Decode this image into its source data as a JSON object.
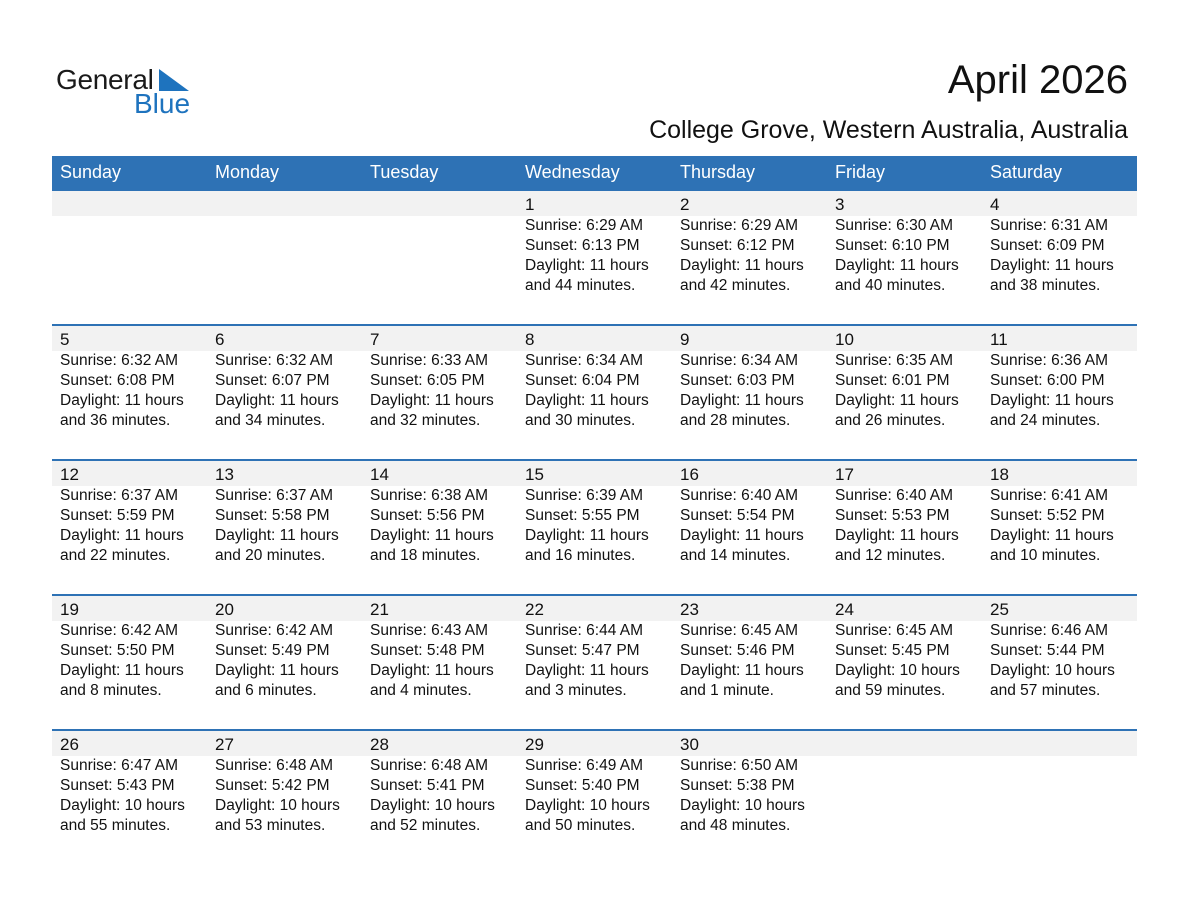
{
  "logo": {
    "text_general": "General",
    "text_blue": "Blue",
    "color": "#1e73be"
  },
  "title": "April 2026",
  "subtitle": "College Grove, Western Australia, Australia",
  "colors": {
    "header": "#2e72b5",
    "strip": "#f2f2f2"
  },
  "weekdays": [
    "Sunday",
    "Monday",
    "Tuesday",
    "Wednesday",
    "Thursday",
    "Friday",
    "Saturday"
  ],
  "weeks": [
    [
      null,
      null,
      null,
      {
        "day": "1",
        "sunrise": "Sunrise: 6:29 AM",
        "sunset": "Sunset: 6:13 PM",
        "daylight": "Daylight: 11 hours",
        "daylight2": "and 44 minutes."
      },
      {
        "day": "2",
        "sunrise": "Sunrise: 6:29 AM",
        "sunset": "Sunset: 6:12 PM",
        "daylight": "Daylight: 11 hours",
        "daylight2": "and 42 minutes."
      },
      {
        "day": "3",
        "sunrise": "Sunrise: 6:30 AM",
        "sunset": "Sunset: 6:10 PM",
        "daylight": "Daylight: 11 hours",
        "daylight2": "and 40 minutes."
      },
      {
        "day": "4",
        "sunrise": "Sunrise: 6:31 AM",
        "sunset": "Sunset: 6:09 PM",
        "daylight": "Daylight: 11 hours",
        "daylight2": "and 38 minutes."
      }
    ],
    [
      {
        "day": "5",
        "sunrise": "Sunrise: 6:32 AM",
        "sunset": "Sunset: 6:08 PM",
        "daylight": "Daylight: 11 hours",
        "daylight2": "and 36 minutes."
      },
      {
        "day": "6",
        "sunrise": "Sunrise: 6:32 AM",
        "sunset": "Sunset: 6:07 PM",
        "daylight": "Daylight: 11 hours",
        "daylight2": "and 34 minutes."
      },
      {
        "day": "7",
        "sunrise": "Sunrise: 6:33 AM",
        "sunset": "Sunset: 6:05 PM",
        "daylight": "Daylight: 11 hours",
        "daylight2": "and 32 minutes."
      },
      {
        "day": "8",
        "sunrise": "Sunrise: 6:34 AM",
        "sunset": "Sunset: 6:04 PM",
        "daylight": "Daylight: 11 hours",
        "daylight2": "and 30 minutes."
      },
      {
        "day": "9",
        "sunrise": "Sunrise: 6:34 AM",
        "sunset": "Sunset: 6:03 PM",
        "daylight": "Daylight: 11 hours",
        "daylight2": "and 28 minutes."
      },
      {
        "day": "10",
        "sunrise": "Sunrise: 6:35 AM",
        "sunset": "Sunset: 6:01 PM",
        "daylight": "Daylight: 11 hours",
        "daylight2": "and 26 minutes."
      },
      {
        "day": "11",
        "sunrise": "Sunrise: 6:36 AM",
        "sunset": "Sunset: 6:00 PM",
        "daylight": "Daylight: 11 hours",
        "daylight2": "and 24 minutes."
      }
    ],
    [
      {
        "day": "12",
        "sunrise": "Sunrise: 6:37 AM",
        "sunset": "Sunset: 5:59 PM",
        "daylight": "Daylight: 11 hours",
        "daylight2": "and 22 minutes."
      },
      {
        "day": "13",
        "sunrise": "Sunrise: 6:37 AM",
        "sunset": "Sunset: 5:58 PM",
        "daylight": "Daylight: 11 hours",
        "daylight2": "and 20 minutes."
      },
      {
        "day": "14",
        "sunrise": "Sunrise: 6:38 AM",
        "sunset": "Sunset: 5:56 PM",
        "daylight": "Daylight: 11 hours",
        "daylight2": "and 18 minutes."
      },
      {
        "day": "15",
        "sunrise": "Sunrise: 6:39 AM",
        "sunset": "Sunset: 5:55 PM",
        "daylight": "Daylight: 11 hours",
        "daylight2": "and 16 minutes."
      },
      {
        "day": "16",
        "sunrise": "Sunrise: 6:40 AM",
        "sunset": "Sunset: 5:54 PM",
        "daylight": "Daylight: 11 hours",
        "daylight2": "and 14 minutes."
      },
      {
        "day": "17",
        "sunrise": "Sunrise: 6:40 AM",
        "sunset": "Sunset: 5:53 PM",
        "daylight": "Daylight: 11 hours",
        "daylight2": "and 12 minutes."
      },
      {
        "day": "18",
        "sunrise": "Sunrise: 6:41 AM",
        "sunset": "Sunset: 5:52 PM",
        "daylight": "Daylight: 11 hours",
        "daylight2": "and 10 minutes."
      }
    ],
    [
      {
        "day": "19",
        "sunrise": "Sunrise: 6:42 AM",
        "sunset": "Sunset: 5:50 PM",
        "daylight": "Daylight: 11 hours",
        "daylight2": "and 8 minutes."
      },
      {
        "day": "20",
        "sunrise": "Sunrise: 6:42 AM",
        "sunset": "Sunset: 5:49 PM",
        "daylight": "Daylight: 11 hours",
        "daylight2": "and 6 minutes."
      },
      {
        "day": "21",
        "sunrise": "Sunrise: 6:43 AM",
        "sunset": "Sunset: 5:48 PM",
        "daylight": "Daylight: 11 hours",
        "daylight2": "and 4 minutes."
      },
      {
        "day": "22",
        "sunrise": "Sunrise: 6:44 AM",
        "sunset": "Sunset: 5:47 PM",
        "daylight": "Daylight: 11 hours",
        "daylight2": "and 3 minutes."
      },
      {
        "day": "23",
        "sunrise": "Sunrise: 6:45 AM",
        "sunset": "Sunset: 5:46 PM",
        "daylight": "Daylight: 11 hours",
        "daylight2": "and 1 minute."
      },
      {
        "day": "24",
        "sunrise": "Sunrise: 6:45 AM",
        "sunset": "Sunset: 5:45 PM",
        "daylight": "Daylight: 10 hours",
        "daylight2": "and 59 minutes."
      },
      {
        "day": "25",
        "sunrise": "Sunrise: 6:46 AM",
        "sunset": "Sunset: 5:44 PM",
        "daylight": "Daylight: 10 hours",
        "daylight2": "and 57 minutes."
      }
    ],
    [
      {
        "day": "26",
        "sunrise": "Sunrise: 6:47 AM",
        "sunset": "Sunset: 5:43 PM",
        "daylight": "Daylight: 10 hours",
        "daylight2": "and 55 minutes."
      },
      {
        "day": "27",
        "sunrise": "Sunrise: 6:48 AM",
        "sunset": "Sunset: 5:42 PM",
        "daylight": "Daylight: 10 hours",
        "daylight2": "and 53 minutes."
      },
      {
        "day": "28",
        "sunrise": "Sunrise: 6:48 AM",
        "sunset": "Sunset: 5:41 PM",
        "daylight": "Daylight: 10 hours",
        "daylight2": "and 52 minutes."
      },
      {
        "day": "29",
        "sunrise": "Sunrise: 6:49 AM",
        "sunset": "Sunset: 5:40 PM",
        "daylight": "Daylight: 10 hours",
        "daylight2": "and 50 minutes."
      },
      {
        "day": "30",
        "sunrise": "Sunrise: 6:50 AM",
        "sunset": "Sunset: 5:38 PM",
        "daylight": "Daylight: 10 hours",
        "daylight2": "and 48 minutes."
      },
      null,
      null
    ]
  ]
}
